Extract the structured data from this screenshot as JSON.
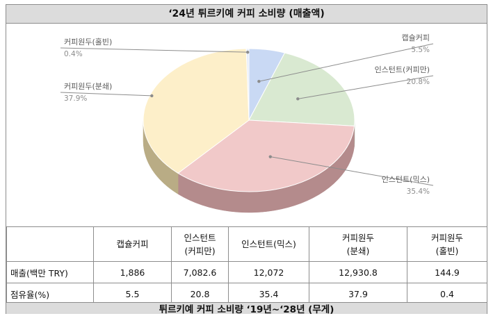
{
  "title": "‘24년 튀르키예 커피 소비량 (매출액)",
  "footer_title": "튀르키예 커피 소비량 ‘19년~‘28년 (무게)",
  "chart_data": {
    "type": "pie",
    "title": "‘24년 튀르키예 커피 소비량 (매출액)",
    "three_d": true,
    "slices": [
      {
        "label": "캡슐커피",
        "value": 5.5,
        "value_label": "5.5%",
        "color": "#c9d9f4",
        "side_color": "#9aa5b8"
      },
      {
        "label": "인스턴트(커피만)",
        "value": 20.8,
        "value_label": "20.8%",
        "color": "#d9e9d1",
        "side_color": "#a7b3a0"
      },
      {
        "label": "인스턴트(믹스)",
        "value": 35.4,
        "value_label": "35.4%",
        "color": "#f1c9c9",
        "side_color": "#b48b8c"
      },
      {
        "label": "커피원두(분쇄)",
        "value": 37.9,
        "value_label": "37.9%",
        "color": "#fdefc9",
        "side_color": "#b9ac85"
      },
      {
        "label": "커피원두(홀빈)",
        "value": 0.4,
        "value_label": "0.4%",
        "color": "#e6ecfa",
        "side_color": "#a9adba"
      }
    ]
  },
  "table": {
    "headers": [
      {
        "line1": "",
        "line2": ""
      },
      {
        "line1": "캡슐커피",
        "line2": ""
      },
      {
        "line1": "인스턴트",
        "line2": "(커피만)"
      },
      {
        "line1": "인스턴트(믹스)",
        "line2": ""
      },
      {
        "line1": "커피원두",
        "line2": "(분쇄)"
      },
      {
        "line1": "커피원두",
        "line2": "(홀빈)"
      }
    ],
    "rows": [
      {
        "label": "매출(백만 TRY)",
        "cells": [
          "1,886",
          "7,082.6",
          "12,072",
          "12,930.8",
          "144.9"
        ]
      },
      {
        "label": "점유율(%)",
        "cells": [
          "5.5",
          "20.8",
          "35.4",
          "37.9",
          "0.4"
        ]
      }
    ]
  }
}
